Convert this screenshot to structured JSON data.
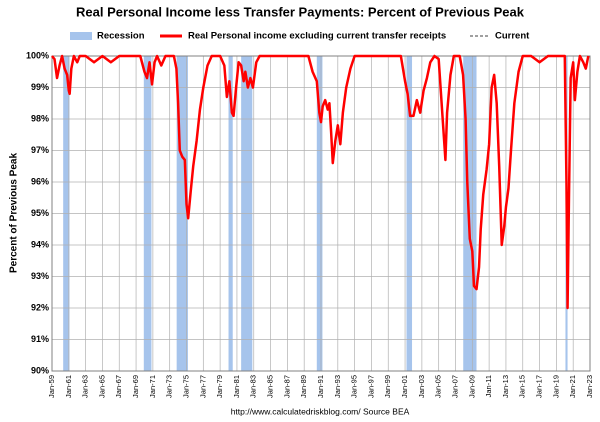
{
  "chart_data": {
    "type": "line",
    "title": "Real Personal Income less Transfer Payments: Percent of Previous Peak",
    "y_label": "Percent of Previous Peak",
    "source": "http://www.calculatedriskblog.com/    Source BEA",
    "xlim": [
      1959,
      2023
    ],
    "xticks": [
      {
        "value": 1959,
        "label": "Jan-59"
      },
      {
        "value": 1961,
        "label": "Jan-61"
      },
      {
        "value": 1963,
        "label": "Jan-63"
      },
      {
        "value": 1965,
        "label": "Jan-65"
      },
      {
        "value": 1967,
        "label": "Jan-67"
      },
      {
        "value": 1969,
        "label": "Jan-69"
      },
      {
        "value": 1971,
        "label": "Jan-71"
      },
      {
        "value": 1973,
        "label": "Jan-73"
      },
      {
        "value": 1975,
        "label": "Jan-75"
      },
      {
        "value": 1977,
        "label": "Jan-77"
      },
      {
        "value": 1979,
        "label": "Jan-79"
      },
      {
        "value": 1981,
        "label": "Jan-81"
      },
      {
        "value": 1983,
        "label": "Jan-83"
      },
      {
        "value": 1985,
        "label": "Jan-85"
      },
      {
        "value": 1987,
        "label": "Jan-87"
      },
      {
        "value": 1989,
        "label": "Jan-89"
      },
      {
        "value": 1991,
        "label": "Jan-91"
      },
      {
        "value": 1993,
        "label": "Jan-93"
      },
      {
        "value": 1995,
        "label": "Jan-95"
      },
      {
        "value": 1997,
        "label": "Jan-97"
      },
      {
        "value": 1999,
        "label": "Jan-99"
      },
      {
        "value": 2001,
        "label": "Jan-01"
      },
      {
        "value": 2003,
        "label": "Jan-03"
      },
      {
        "value": 2005,
        "label": "Jan-05"
      },
      {
        "value": 2007,
        "label": "Jan-07"
      },
      {
        "value": 2009,
        "label": "Jan-09"
      },
      {
        "value": 2011,
        "label": "Jan-11"
      },
      {
        "value": 2013,
        "label": "Jan-13"
      },
      {
        "value": 2015,
        "label": "Jan-15"
      },
      {
        "value": 2017,
        "label": "Jan-17"
      },
      {
        "value": 2019,
        "label": "Jan-19"
      },
      {
        "value": 2021,
        "label": "Jan-21"
      },
      {
        "value": 2023,
        "label": "Jan-23"
      }
    ],
    "ylim": [
      90,
      100
    ],
    "yticks": [
      {
        "value": 90,
        "label": "90%"
      },
      {
        "value": 91,
        "label": "91%"
      },
      {
        "value": 92,
        "label": "92%"
      },
      {
        "value": 93,
        "label": "93%"
      },
      {
        "value": 94,
        "label": "94%"
      },
      {
        "value": 95,
        "label": "95%"
      },
      {
        "value": 96,
        "label": "96%"
      },
      {
        "value": 97,
        "label": "97%"
      },
      {
        "value": 98,
        "label": "98%"
      },
      {
        "value": 99,
        "label": "99%"
      },
      {
        "value": 100,
        "label": "100%"
      }
    ],
    "grid": true,
    "recessions": {
      "name": "Recession",
      "color": "#a6c4ec",
      "periods": [
        [
          1960.33,
          1961.08
        ],
        [
          1969.92,
          1970.83
        ],
        [
          1973.83,
          1975.17
        ],
        [
          1980.0,
          1980.5
        ],
        [
          1981.5,
          1982.83
        ],
        [
          1990.5,
          1991.17
        ],
        [
          2001.17,
          2001.83
        ],
        [
          2007.92,
          2009.5
        ],
        [
          2020.08,
          2020.33
        ]
      ]
    },
    "current": {
      "name": "Current",
      "color": "#808080"
    },
    "series": [
      {
        "name": "Real Personal income excluding current transfer receipts",
        "color": "#ff0000",
        "x": [
          1959.0,
          1959.3,
          1959.6,
          1959.9,
          1960.2,
          1960.5,
          1960.8,
          1961.0,
          1961.1,
          1961.3,
          1961.6,
          1962.0,
          1962.3,
          1963.0,
          1964.0,
          1965.0,
          1966.0,
          1967.0,
          1968.0,
          1969.5,
          1970.0,
          1970.3,
          1970.6,
          1970.9,
          1971.2,
          1971.5,
          1972.0,
          1972.5,
          1973.5,
          1973.8,
          1974.0,
          1974.2,
          1974.5,
          1974.8,
          1975.0,
          1975.2,
          1975.5,
          1975.8,
          1976.2,
          1976.6,
          1977.0,
          1977.5,
          1978.0,
          1979.0,
          1979.5,
          1979.8,
          1980.1,
          1980.4,
          1980.6,
          1980.9,
          1981.2,
          1981.5,
          1981.8,
          1982.0,
          1982.3,
          1982.6,
          1982.9,
          1983.3,
          1983.7,
          1986.0,
          1988.0,
          1989.5,
          1990.0,
          1990.5,
          1990.8,
          1991.0,
          1991.2,
          1991.5,
          1991.8,
          1992.0,
          1992.2,
          1992.4,
          1992.7,
          1993.0,
          1993.3,
          1993.6,
          1994.0,
          1994.5,
          1995.0,
          1999.0,
          2000.5,
          2001.0,
          2001.3,
          2001.6,
          2002.0,
          2002.4,
          2002.8,
          2003.2,
          2003.6,
          2004.0,
          2004.5,
          2005.0,
          2005.6,
          2005.8,
          2006.0,
          2006.4,
          2006.8,
          2007.5,
          2007.9,
          2008.2,
          2008.4,
          2008.7,
          2009.0,
          2009.2,
          2009.5,
          2009.8,
          2010.0,
          2010.3,
          2010.7,
          2011.0,
          2011.3,
          2011.6,
          2011.9,
          2012.2,
          2012.5,
          2012.8,
          2013.0,
          2013.3,
          2013.6,
          2014.0,
          2014.5,
          2015.0,
          2016.0,
          2017.0,
          2018.0,
          2019.5,
          2020.0,
          2020.2,
          2020.33,
          2020.5,
          2020.7,
          2021.0,
          2021.2,
          2021.5,
          2021.8,
          2022.2,
          2022.5,
          2022.8
        ],
        "values": [
          100,
          99.9,
          99.3,
          99.7,
          100,
          99.6,
          99.4,
          98.9,
          98.8,
          99.6,
          100,
          99.8,
          100,
          100,
          99.8,
          100,
          99.8,
          100,
          100,
          100,
          99.5,
          99.3,
          99.8,
          99.1,
          99.8,
          100,
          99.7,
          100,
          100,
          99.6,
          98.5,
          97,
          96.8,
          96.7,
          95.3,
          94.85,
          95.7,
          96.5,
          97.3,
          98.3,
          99,
          99.7,
          100,
          100,
          99.7,
          98.7,
          99.2,
          98.2,
          98.1,
          99,
          99.8,
          99.7,
          99.2,
          99.5,
          99,
          99.3,
          99,
          99.8,
          100,
          100,
          100,
          100,
          99.5,
          99.2,
          98.2,
          97.9,
          98.4,
          98.6,
          98.3,
          98.5,
          97.6,
          96.6,
          97.3,
          97.8,
          97.2,
          98.2,
          99,
          99.6,
          100,
          100,
          100,
          99.2,
          98.8,
          98.1,
          98.1,
          98.6,
          98.2,
          98.9,
          99.3,
          99.8,
          100,
          99.9,
          97.5,
          96.7,
          98.2,
          99.4,
          100,
          100,
          99.4,
          98,
          96,
          94.2,
          93.8,
          92.7,
          92.6,
          93.3,
          94.5,
          95.6,
          96.4,
          97.2,
          99,
          99.4,
          98.5,
          96.5,
          94,
          94.6,
          95.2,
          95.8,
          97,
          98.5,
          99.5,
          100,
          100,
          99.8,
          100,
          100,
          100,
          96,
          92,
          95.5,
          99.3,
          99.8,
          98.6,
          99.5,
          100,
          99.8,
          99.6,
          100
        ]
      }
    ]
  }
}
